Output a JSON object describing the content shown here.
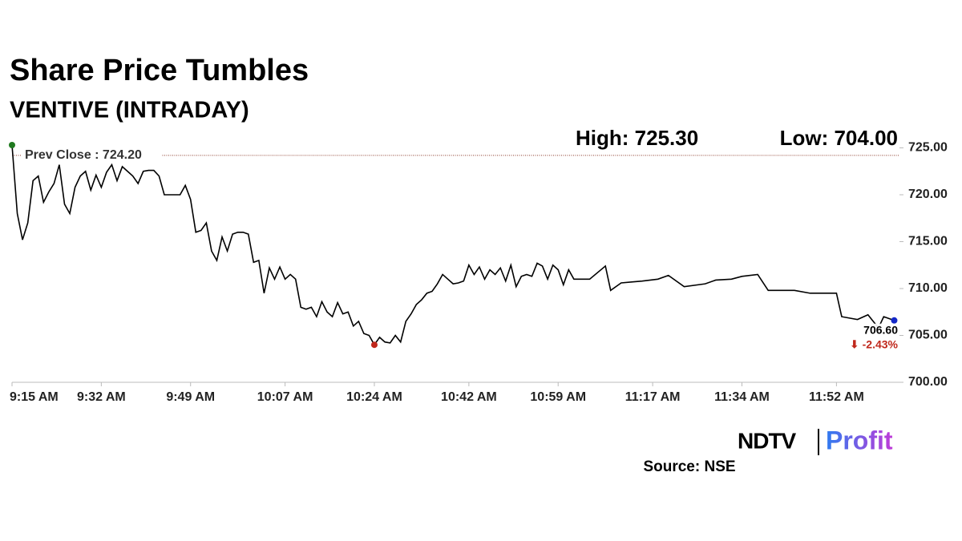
{
  "chart_data": {
    "type": "line",
    "title": "Share Price Tumbles",
    "subtitle": "VENTIVE (INTRADAY)",
    "high_label": "High: 725.30",
    "low_label": "Low: 704.00",
    "prev_close": {
      "label": "Prev Close : 724.20",
      "value": 724.2,
      "color": "#8b3a2a"
    },
    "last_price": {
      "label": "706.60",
      "value": 706.6
    },
    "change_label": "⬇ -2.43%",
    "change_color": "#c0281c",
    "start_marker_color": "#1f7a1f",
    "low_marker_color": "#c0281c",
    "end_marker_color": "#1428c8",
    "x": [
      "9:15 AM",
      "9:16 AM",
      "9:17 AM",
      "9:18 AM",
      "9:19 AM",
      "9:20 AM",
      "9:21 AM",
      "9:22 AM",
      "9:23 AM",
      "9:24 AM",
      "9:25 AM",
      "9:26 AM",
      "9:27 AM",
      "9:28 AM",
      "9:29 AM",
      "9:30 AM",
      "9:31 AM",
      "9:32 AM",
      "9:33 AM",
      "9:34 AM",
      "9:35 AM",
      "9:36 AM",
      "9:37 AM",
      "9:38 AM",
      "9:39 AM",
      "9:40 AM",
      "9:41 AM",
      "9:42 AM",
      "9:43 AM",
      "9:44 AM",
      "9:45 AM",
      "9:46 AM",
      "9:47 AM",
      "9:48 AM",
      "9:49 AM",
      "9:50 AM",
      "9:51 AM",
      "9:52 AM",
      "9:53 AM",
      "9:54 AM",
      "9:55 AM",
      "9:56 AM",
      "9:57 AM",
      "9:58 AM",
      "9:59 AM",
      "10:00 AM",
      "10:01 AM",
      "10:02 AM",
      "10:03 AM",
      "10:04 AM",
      "10:05 AM",
      "10:06 AM",
      "10:07 AM",
      "10:08 AM",
      "10:09 AM",
      "10:10 AM",
      "10:11 AM",
      "10:12 AM",
      "10:13 AM",
      "10:14 AM",
      "10:15 AM",
      "10:16 AM",
      "10:17 AM",
      "10:18 AM",
      "10:19 AM",
      "10:20 AM",
      "10:21 AM",
      "10:22 AM",
      "10:23 AM",
      "10:24 AM",
      "10:25 AM",
      "10:26 AM",
      "10:27 AM",
      "10:28 AM",
      "10:29 AM",
      "10:30 AM",
      "10:31 AM",
      "10:32 AM",
      "10:33 AM",
      "10:34 AM",
      "10:35 AM",
      "10:36 AM",
      "10:37 AM",
      "10:38 AM",
      "10:39 AM",
      "10:40 AM",
      "10:41 AM",
      "10:42 AM",
      "10:43 AM",
      "10:44 AM",
      "10:45 AM",
      "10:46 AM",
      "10:47 AM",
      "10:48 AM",
      "10:49 AM",
      "10:50 AM",
      "10:51 AM",
      "10:52 AM",
      "10:53 AM",
      "10:54 AM",
      "10:55 AM",
      "10:56 AM",
      "10:57 AM",
      "10:58 AM",
      "10:59 AM",
      "11:00 AM",
      "11:01 AM",
      "11:02 AM",
      "11:05 AM",
      "11:08 AM",
      "11:09 AM",
      "11:11 AM",
      "11:13 AM",
      "11:15 AM",
      "11:18 AM",
      "11:20 AM",
      "11:23 AM",
      "11:27 AM",
      "11:29 AM",
      "11:32 AM",
      "11:34 AM",
      "11:37 AM",
      "11:39 AM",
      "11:44 AM",
      "11:47 AM",
      "11:52 AM",
      "11:53 AM",
      "11:56 AM",
      "11:58 AM",
      "12:00 PM",
      "12:01 PM",
      "12:03 PM"
    ],
    "series": [
      {
        "name": "VENTIVE",
        "color": "#000000",
        "values": [
          725.3,
          718,
          715.2,
          717,
          721.5,
          722,
          719.2,
          720.3,
          721.2,
          723.2,
          719,
          718,
          720.8,
          722,
          722.5,
          720.5,
          722.1,
          720.8,
          722.4,
          723.2,
          721.5,
          723,
          722.5,
          722,
          721.2,
          722.5,
          722.6,
          722.6,
          722,
          720,
          720,
          720,
          720,
          721,
          719.5,
          716,
          716.2,
          717,
          714,
          713,
          715.5,
          714,
          715.8,
          716,
          716,
          715.8,
          712.8,
          713,
          709.5,
          712.2,
          711,
          712.3,
          711,
          711.5,
          711,
          708,
          707.8,
          708,
          707,
          708.6,
          707.5,
          707,
          708.5,
          707.3,
          707.5,
          706,
          706.5,
          705.2,
          705,
          704,
          704.8,
          704.3,
          704.2,
          705,
          704.3,
          706.5,
          707.3,
          708.3,
          708.8,
          709.5,
          709.7,
          710.5,
          711.5,
          711,
          710.5,
          710.6,
          710.8,
          712.5,
          711.5,
          712.3,
          711,
          712,
          711.5,
          712.2,
          710.8,
          712.5,
          710.2,
          711.3,
          711.5,
          711.3,
          712.7,
          712.4,
          711,
          712.5,
          712,
          710.4,
          712,
          711,
          711,
          712.4,
          709.8,
          710.6,
          710.7,
          710.8,
          711,
          711.4,
          710.2,
          710.5,
          710.9,
          711,
          711.3,
          711.5,
          709.8,
          709.8,
          709.5,
          709.5,
          707,
          706.7,
          707.2,
          705.8,
          707,
          706.6
        ]
      }
    ],
    "xlim": [
      "9:15 AM",
      "12:04 PM"
    ],
    "xticks": [
      "9:15 AM",
      "9:32 AM",
      "9:49 AM",
      "10:07 AM",
      "10:24 AM",
      "10:42 AM",
      "10:59 AM",
      "11:17 AM",
      "11:34 AM",
      "11:52 AM"
    ],
    "ylim": [
      700,
      725.3
    ],
    "yticks": [
      {
        "value": 700,
        "label": "700.00"
      },
      {
        "value": 705,
        "label": "705.00"
      },
      {
        "value": 710,
        "label": "710.00"
      },
      {
        "value": 715,
        "label": "715.00"
      },
      {
        "value": 720,
        "label": "720.00"
      },
      {
        "value": 725,
        "label": "725.00"
      }
    ],
    "grid": false,
    "logo": {
      "left": "NDTV",
      "right": "Profit"
    },
    "source": "Source: NSE"
  }
}
